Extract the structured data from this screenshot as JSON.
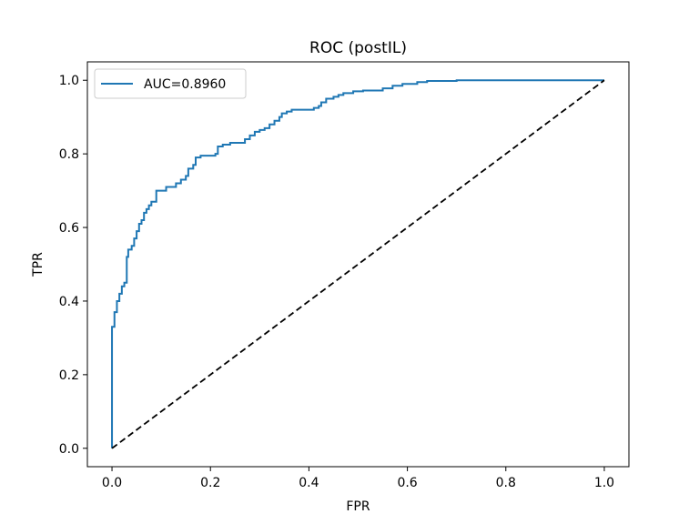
{
  "chart_data": {
    "type": "line",
    "title": "ROC (postIL)",
    "xlabel": "FPR",
    "ylabel": "TPR",
    "xlim": [
      -0.05,
      1.05
    ],
    "ylim": [
      -0.05,
      1.05
    ],
    "x_ticks": [
      0.0,
      0.2,
      0.4,
      0.6,
      0.8,
      1.0
    ],
    "y_ticks": [
      0.0,
      0.2,
      0.4,
      0.6,
      0.8,
      1.0
    ],
    "x_tick_labels": [
      "0.0",
      "0.2",
      "0.4",
      "0.6",
      "0.8",
      "1.0"
    ],
    "y_tick_labels": [
      "0.0",
      "0.2",
      "0.4",
      "0.6",
      "0.8",
      "1.0"
    ],
    "grid": false,
    "legend_position": "top-left",
    "series": [
      {
        "name": "AUC=0.8960",
        "color": "#1f77b4",
        "style": "solid",
        "points": [
          [
            0.0,
            0.0
          ],
          [
            0.0,
            0.33
          ],
          [
            0.005,
            0.33
          ],
          [
            0.005,
            0.37
          ],
          [
            0.01,
            0.37
          ],
          [
            0.01,
            0.4
          ],
          [
            0.015,
            0.4
          ],
          [
            0.015,
            0.42
          ],
          [
            0.02,
            0.42
          ],
          [
            0.02,
            0.44
          ],
          [
            0.025,
            0.44
          ],
          [
            0.025,
            0.45
          ],
          [
            0.03,
            0.45
          ],
          [
            0.03,
            0.52
          ],
          [
            0.033,
            0.52
          ],
          [
            0.033,
            0.54
          ],
          [
            0.04,
            0.54
          ],
          [
            0.04,
            0.55
          ],
          [
            0.045,
            0.55
          ],
          [
            0.045,
            0.57
          ],
          [
            0.05,
            0.57
          ],
          [
            0.05,
            0.59
          ],
          [
            0.055,
            0.59
          ],
          [
            0.055,
            0.61
          ],
          [
            0.06,
            0.61
          ],
          [
            0.06,
            0.62
          ],
          [
            0.065,
            0.62
          ],
          [
            0.065,
            0.64
          ],
          [
            0.07,
            0.64
          ],
          [
            0.07,
            0.65
          ],
          [
            0.075,
            0.65
          ],
          [
            0.075,
            0.66
          ],
          [
            0.08,
            0.66
          ],
          [
            0.08,
            0.67
          ],
          [
            0.09,
            0.67
          ],
          [
            0.09,
            0.7
          ],
          [
            0.1,
            0.7
          ],
          [
            0.1,
            0.7
          ],
          [
            0.11,
            0.7
          ],
          [
            0.11,
            0.71
          ],
          [
            0.13,
            0.71
          ],
          [
            0.13,
            0.72
          ],
          [
            0.14,
            0.72
          ],
          [
            0.14,
            0.73
          ],
          [
            0.15,
            0.73
          ],
          [
            0.15,
            0.74
          ],
          [
            0.155,
            0.74
          ],
          [
            0.155,
            0.76
          ],
          [
            0.165,
            0.76
          ],
          [
            0.165,
            0.77
          ],
          [
            0.17,
            0.77
          ],
          [
            0.17,
            0.79
          ],
          [
            0.18,
            0.79
          ],
          [
            0.18,
            0.795
          ],
          [
            0.21,
            0.795
          ],
          [
            0.21,
            0.8
          ],
          [
            0.215,
            0.8
          ],
          [
            0.215,
            0.82
          ],
          [
            0.225,
            0.82
          ],
          [
            0.225,
            0.825
          ],
          [
            0.24,
            0.825
          ],
          [
            0.24,
            0.83
          ],
          [
            0.27,
            0.83
          ],
          [
            0.27,
            0.84
          ],
          [
            0.28,
            0.84
          ],
          [
            0.28,
            0.85
          ],
          [
            0.29,
            0.85
          ],
          [
            0.29,
            0.86
          ],
          [
            0.3,
            0.86
          ],
          [
            0.3,
            0.865
          ],
          [
            0.31,
            0.865
          ],
          [
            0.31,
            0.87
          ],
          [
            0.32,
            0.87
          ],
          [
            0.32,
            0.88
          ],
          [
            0.33,
            0.88
          ],
          [
            0.33,
            0.89
          ],
          [
            0.34,
            0.89
          ],
          [
            0.34,
            0.9
          ],
          [
            0.345,
            0.9
          ],
          [
            0.345,
            0.91
          ],
          [
            0.355,
            0.91
          ],
          [
            0.355,
            0.915
          ],
          [
            0.365,
            0.915
          ],
          [
            0.365,
            0.92
          ],
          [
            0.41,
            0.92
          ],
          [
            0.41,
            0.925
          ],
          [
            0.42,
            0.925
          ],
          [
            0.42,
            0.93
          ],
          [
            0.425,
            0.93
          ],
          [
            0.425,
            0.94
          ],
          [
            0.435,
            0.94
          ],
          [
            0.435,
            0.95
          ],
          [
            0.45,
            0.95
          ],
          [
            0.45,
            0.955
          ],
          [
            0.46,
            0.955
          ],
          [
            0.46,
            0.96
          ],
          [
            0.47,
            0.96
          ],
          [
            0.47,
            0.965
          ],
          [
            0.49,
            0.965
          ],
          [
            0.49,
            0.97
          ],
          [
            0.51,
            0.97
          ],
          [
            0.51,
            0.972
          ],
          [
            0.55,
            0.972
          ],
          [
            0.55,
            0.978
          ],
          [
            0.57,
            0.978
          ],
          [
            0.57,
            0.985
          ],
          [
            0.59,
            0.985
          ],
          [
            0.59,
            0.99
          ],
          [
            0.62,
            0.99
          ],
          [
            0.62,
            0.995
          ],
          [
            0.64,
            0.995
          ],
          [
            0.64,
            0.998
          ],
          [
            0.7,
            0.998
          ],
          [
            0.7,
            1.0
          ],
          [
            1.0,
            1.0
          ]
        ]
      },
      {
        "color": "#000000",
        "style": "dashed",
        "points": [
          [
            0.0,
            0.0
          ],
          [
            1.0,
            1.0
          ]
        ]
      }
    ]
  }
}
